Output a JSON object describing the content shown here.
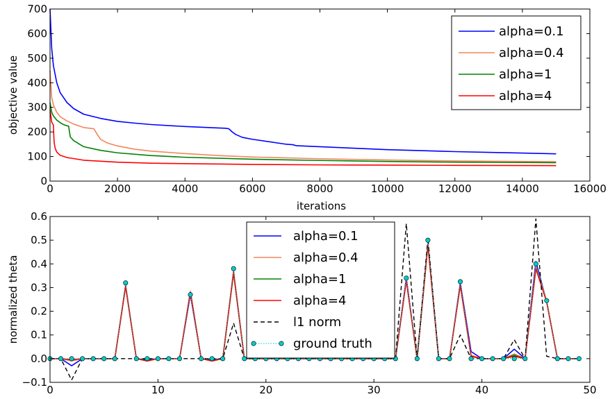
{
  "chart_data": [
    {
      "type": "line",
      "title": "",
      "xlabel": "iterations",
      "ylabel": "objective value",
      "xlim": [
        0,
        16000
      ],
      "ylim": [
        0,
        700
      ],
      "xticks": [
        0,
        2000,
        4000,
        6000,
        8000,
        10000,
        12000,
        14000,
        16000
      ],
      "yticks": [
        0,
        100,
        200,
        300,
        400,
        500,
        600,
        700
      ],
      "legend_position": "top-right",
      "series": [
        {
          "name": "alpha=0.1",
          "color": "#0000ff",
          "x": [
            0,
            50,
            100,
            200,
            300,
            500,
            700,
            1000,
            1500,
            2000,
            2500,
            3000,
            4000,
            5000,
            5200,
            5300,
            5400,
            5500,
            5700,
            6000,
            7000,
            7200,
            7300,
            8000,
            9000,
            10000,
            11000,
            12000,
            13000,
            14000,
            15000
          ],
          "y": [
            700,
            540,
            470,
            400,
            360,
            320,
            295,
            272,
            255,
            243,
            236,
            230,
            222,
            216,
            215,
            213,
            200,
            190,
            178,
            170,
            150,
            148,
            144,
            140,
            134,
            128,
            124,
            120,
            117,
            114,
            111
          ]
        },
        {
          "name": "alpha=0.4",
          "color": "#f4845b",
          "x": [
            0,
            50,
            100,
            200,
            300,
            500,
            700,
            1000,
            1300,
            1400,
            1500,
            1700,
            2000,
            2500,
            3000,
            4000,
            5000,
            6000,
            8000,
            10000,
            12000,
            14000,
            15000
          ],
          "y": [
            450,
            340,
            310,
            280,
            262,
            245,
            232,
            218,
            213,
            190,
            170,
            155,
            143,
            130,
            122,
            112,
            104,
            98,
            91,
            86,
            82,
            80,
            79
          ]
        },
        {
          "name": "alpha=1",
          "color": "#008000",
          "x": [
            0,
            50,
            100,
            200,
            300,
            400,
            500,
            550,
            600,
            700,
            900,
            1000,
            1500,
            2000,
            3000,
            4000,
            6000,
            8000,
            10000,
            12000,
            15000
          ],
          "y": [
            320,
            280,
            265,
            248,
            238,
            230,
            225,
            224,
            180,
            165,
            148,
            140,
            125,
            115,
            104,
            97,
            89,
            84,
            80,
            77,
            75
          ]
        },
        {
          "name": "alpha=4",
          "color": "#ff0000",
          "x": [
            0,
            50,
            100,
            120,
            150,
            200,
            300,
            500,
            1000,
            2000,
            3000,
            4000,
            6000,
            8000,
            10000,
            12000,
            15000
          ],
          "y": [
            290,
            240,
            228,
            160,
            135,
            118,
            105,
            96,
            85,
            77,
            73,
            71,
            68,
            66,
            65,
            64,
            63
          ]
        }
      ]
    },
    {
      "type": "line",
      "title": "",
      "xlabel": "",
      "ylabel": "normalized theta",
      "xlim": [
        0,
        50
      ],
      "ylim": [
        -0.1,
        0.6
      ],
      "xticks": [
        0,
        10,
        20,
        30,
        40,
        50
      ],
      "yticks": [
        -0.1,
        0.0,
        0.1,
        0.2,
        0.3,
        0.4,
        0.5,
        0.6
      ],
      "ytick_labels": [
        "−0.1",
        "0.0",
        "0.1",
        "0.2",
        "0.3",
        "0.4",
        "0.5",
        "0.6"
      ],
      "legend_position": "top-center",
      "x": [
        0,
        1,
        2,
        3,
        4,
        5,
        6,
        7,
        8,
        9,
        10,
        11,
        12,
        13,
        14,
        15,
        16,
        17,
        18,
        19,
        20,
        21,
        22,
        23,
        24,
        25,
        26,
        27,
        28,
        29,
        30,
        31,
        32,
        33,
        34,
        35,
        36,
        37,
        38,
        39,
        40,
        41,
        42,
        43,
        44,
        45,
        46,
        47,
        48,
        49
      ],
      "series": [
        {
          "name": "alpha=0.1",
          "color": "#0000ff",
          "style": "solid",
          "y": [
            0,
            0,
            -0.03,
            0,
            0,
            0,
            0,
            0.31,
            0,
            -0.005,
            0,
            0,
            0,
            0.27,
            0,
            -0.005,
            0,
            0.37,
            0,
            0,
            0,
            0,
            0,
            0,
            0,
            0,
            0,
            0,
            0,
            0,
            0,
            0,
            0,
            0.34,
            0,
            0.49,
            0,
            0,
            0.32,
            0.03,
            0,
            0,
            0,
            0.04,
            0,
            0.41,
            0.24,
            0,
            0,
            0
          ]
        },
        {
          "name": "alpha=0.4",
          "color": "#f4845b",
          "style": "solid",
          "y": [
            0,
            0,
            -0.01,
            0,
            0,
            0,
            0,
            0.31,
            0,
            -0.01,
            0,
            0,
            0,
            0.285,
            0,
            -0.01,
            0,
            0.37,
            0,
            0,
            0,
            0,
            0,
            0,
            0,
            0,
            0,
            0,
            0,
            0,
            0,
            0,
            0,
            0.33,
            0,
            0.49,
            0,
            0,
            0.31,
            0.015,
            0,
            0,
            0,
            0.02,
            0,
            0.39,
            0.245,
            0,
            0,
            0
          ]
        },
        {
          "name": "alpha=1",
          "color": "#008000",
          "style": "solid",
          "y": [
            0,
            0,
            -0.005,
            0,
            0,
            0,
            0,
            0.305,
            0,
            -0.008,
            0,
            0,
            0,
            0.28,
            0,
            -0.008,
            0,
            0.36,
            0,
            0,
            0,
            0,
            0,
            0,
            0,
            0,
            0,
            0,
            0,
            0,
            0,
            0,
            0,
            0.33,
            0,
            0.48,
            0,
            0,
            0.31,
            0.01,
            0,
            0,
            0,
            0.015,
            0,
            0.38,
            0.24,
            0,
            0,
            0
          ]
        },
        {
          "name": "alpha=4",
          "color": "#ff0000",
          "style": "solid",
          "y": [
            0,
            0,
            -0.005,
            0,
            0,
            0,
            0,
            0.305,
            0,
            -0.01,
            0,
            0,
            0,
            0.28,
            0,
            -0.01,
            0,
            0.365,
            0,
            0,
            0,
            0,
            0,
            0,
            0,
            0,
            0,
            0,
            0,
            0,
            0,
            0,
            0,
            0.33,
            0,
            0.48,
            0,
            0,
            0.31,
            0.01,
            0,
            0,
            0,
            0.01,
            0,
            0.38,
            0.24,
            0,
            0,
            0
          ]
        },
        {
          "name": "l1 norm",
          "color": "#000000",
          "style": "dashed",
          "y": [
            0,
            0,
            -0.09,
            0,
            0,
            0,
            0,
            0,
            0,
            0,
            0,
            0,
            0,
            0,
            0,
            0,
            0,
            0.15,
            0,
            0,
            0,
            0,
            0,
            0,
            0,
            0,
            0,
            0,
            0,
            0,
            0,
            0,
            0,
            0.57,
            0,
            0.51,
            0,
            0,
            0.1,
            0,
            0,
            0,
            0,
            0.08,
            0,
            0.59,
            0.01,
            0,
            0,
            0
          ]
        },
        {
          "name": "ground truth",
          "color": "#00cccc",
          "style": "dotted-markers",
          "y": [
            0,
            0,
            0,
            0,
            0,
            0,
            0,
            0.32,
            0,
            0,
            0,
            0,
            0,
            0.27,
            0,
            0,
            0,
            0.38,
            0,
            0,
            0,
            0,
            0,
            0,
            0,
            0,
            0,
            0,
            0,
            0,
            0,
            0,
            0,
            0.34,
            0,
            0.5,
            0,
            0,
            0.325,
            0,
            0,
            0,
            0,
            0,
            0,
            0.4,
            0.245,
            0,
            0,
            0
          ]
        }
      ]
    }
  ]
}
